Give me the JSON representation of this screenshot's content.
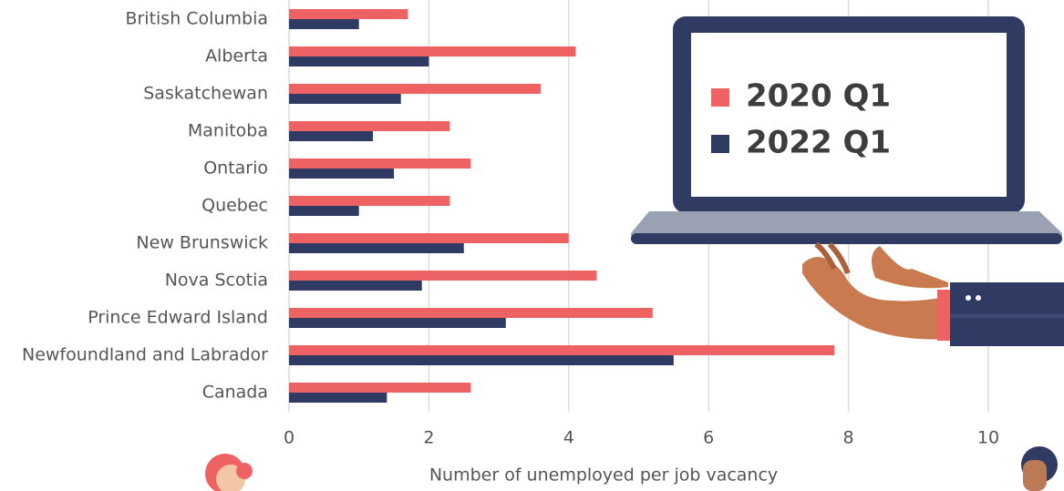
{
  "chart_data": {
    "type": "hbar",
    "x_label": "Number of unemployed per job vacancy",
    "categories": [
      "British Columbia",
      "Alberta",
      "Saskatchewan",
      "Manitoba",
      "Ontario",
      "Quebec",
      "New Brunswick",
      "Nova Scotia",
      "Prince Edward Island",
      "Newfoundland and Labrador",
      "Canada"
    ],
    "series": [
      {
        "name": "2020 Q1",
        "color": "#ef6264",
        "values": [
          1.7,
          4.1,
          3.6,
          2.3,
          2.6,
          2.3,
          4.0,
          4.4,
          5.2,
          7.8,
          2.6
        ]
      },
      {
        "name": "2022 Q1",
        "color": "#2f3b63",
        "values": [
          1.0,
          2.0,
          1.6,
          1.2,
          1.5,
          1.0,
          2.5,
          1.9,
          3.1,
          5.5,
          1.4
        ]
      }
    ],
    "xlim": [
      0,
      11
    ],
    "xticks": [
      0,
      2,
      4,
      6,
      8,
      10
    ],
    "grid": true
  }
}
